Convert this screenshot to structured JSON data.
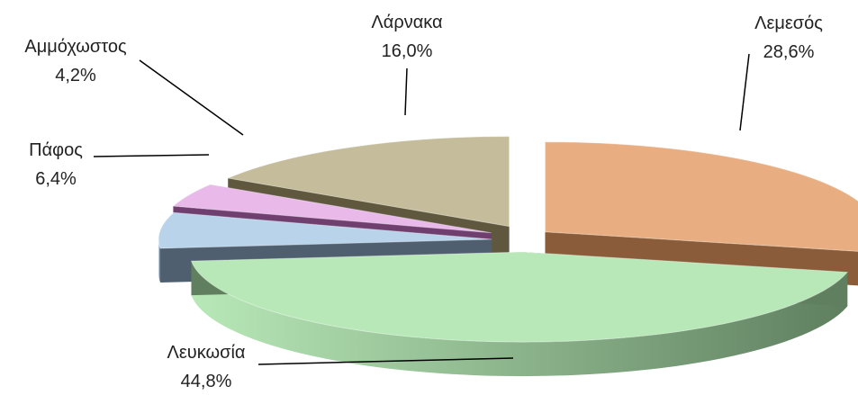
{
  "chart_data": {
    "type": "pie",
    "style": "3d-exploded",
    "title": "",
    "slices": [
      {
        "label": "Λεμεσός",
        "value": 28.6,
        "value_label": "28,6%",
        "color": "#e8ae82",
        "side_color": "#8a5c3a"
      },
      {
        "label": "Λευκωσία",
        "value": 44.8,
        "value_label": "44,8%",
        "color": "#b8e8b8",
        "side_color": "#5f7f5f"
      },
      {
        "label": "Πάφος",
        "value": 6.4,
        "value_label": "6,4%",
        "color": "#b9d3ea",
        "side_color": "#4f5f6f"
      },
      {
        "label": "Αμμόχωστος",
        "value": 4.2,
        "value_label": "4,2%",
        "color": "#e9b9e9",
        "side_color": "#6f3f6f"
      },
      {
        "label": "Λάρνακα",
        "value": 16.0,
        "value_label": "16,0%",
        "color": "#c4bc9a",
        "side_color": "#5f583f"
      }
    ],
    "legend": "none",
    "data_labels": "outside-with-leader-lines"
  }
}
